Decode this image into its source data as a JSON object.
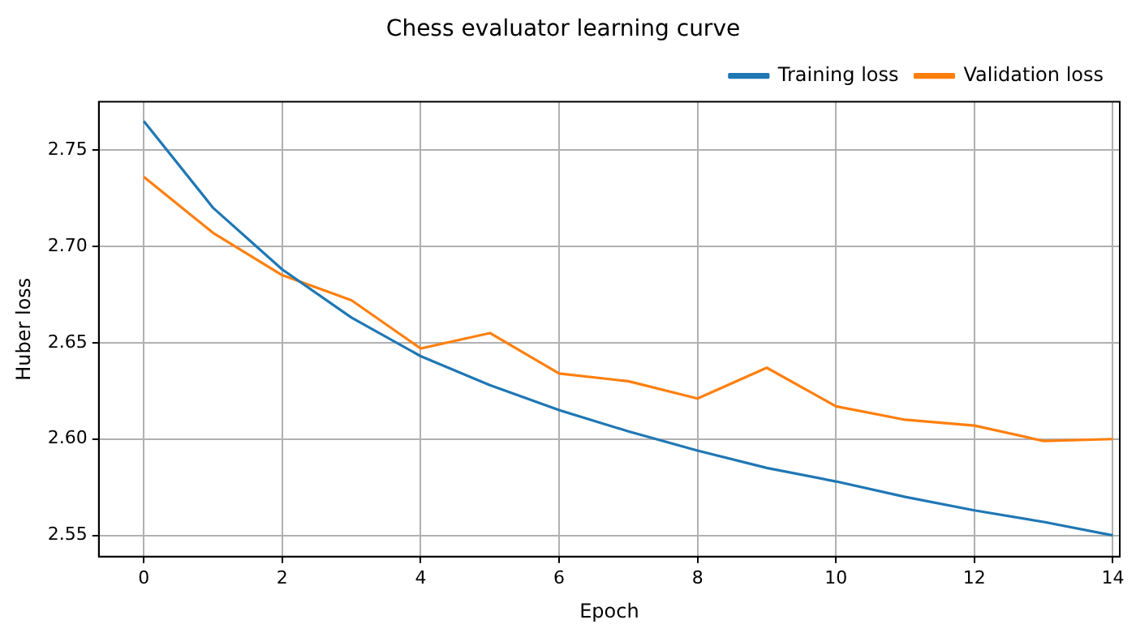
{
  "chart_data": {
    "type": "line",
    "title": "Chess evaluator learning curve",
    "xlabel": "Epoch",
    "ylabel": "Huber loss",
    "x": [
      0,
      1,
      2,
      3,
      4,
      5,
      6,
      7,
      8,
      9,
      10,
      11,
      12,
      13,
      14
    ],
    "series": [
      {
        "name": "Training loss",
        "color": "#1f77b4",
        "values": [
          2.765,
          2.72,
          2.688,
          2.663,
          2.643,
          2.628,
          2.615,
          2.604,
          2.594,
          2.585,
          2.578,
          2.57,
          2.563,
          2.557,
          2.55
        ]
      },
      {
        "name": "Validation loss",
        "color": "#ff7f0e",
        "values": [
          2.736,
          2.707,
          2.685,
          2.672,
          2.647,
          2.655,
          2.634,
          2.63,
          2.621,
          2.637,
          2.617,
          2.61,
          2.607,
          2.599,
          2.6
        ]
      }
    ],
    "xlim": [
      -0.65,
      14.1
    ],
    "xticks": [
      0,
      2,
      4,
      6,
      8,
      10,
      12,
      14
    ],
    "ylim": [
      2.539,
      2.775
    ],
    "yticks": [
      {
        "value": 2.55,
        "label": "2.55"
      },
      {
        "value": 2.6,
        "label": "2.60"
      },
      {
        "value": 2.65,
        "label": "2.65"
      },
      {
        "value": 2.7,
        "label": "2.70"
      },
      {
        "value": 2.75,
        "label": "2.75"
      }
    ],
    "grid": true,
    "legend": "top right",
    "marker": "none",
    "line_style": "solid"
  }
}
